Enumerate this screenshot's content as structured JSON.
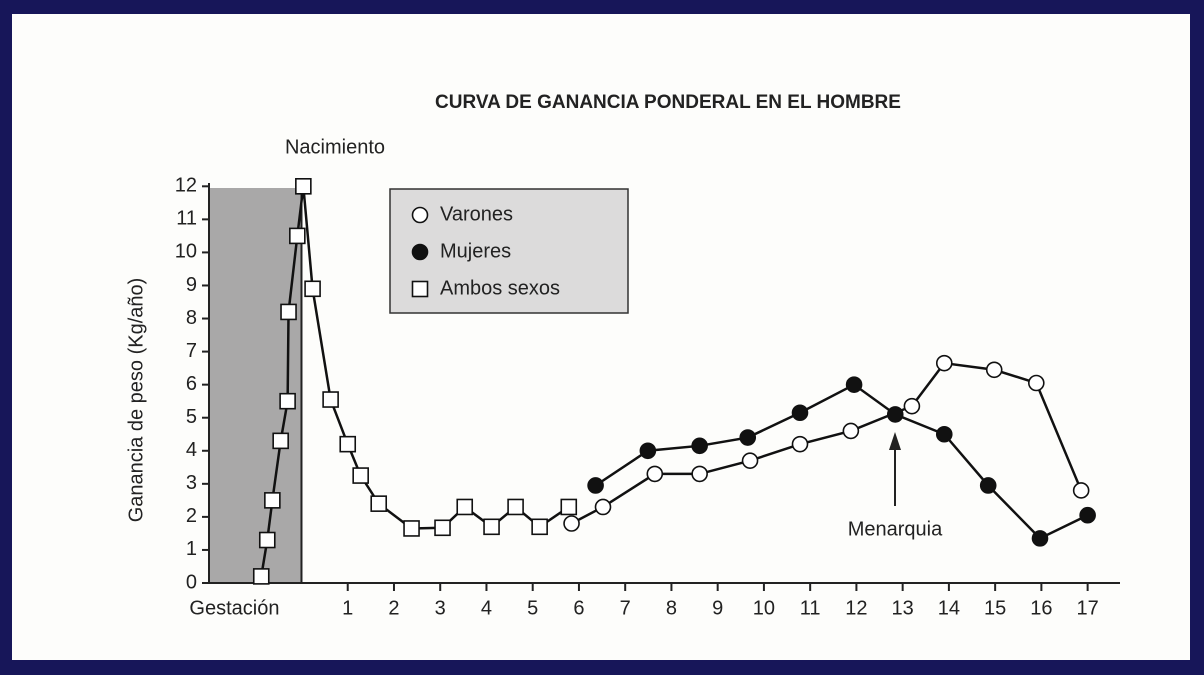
{
  "chart_data": {
    "type": "line",
    "title": "CURVA DE GANANCIA PONDERAL EN EL HOMBRE",
    "y_label": "Ganancia de peso (Kg/año)",
    "annotations": [
      "Nacimiento",
      "Menarquia"
    ],
    "xlim": [
      -2,
      17.7
    ],
    "ylim": [
      0,
      12.1
    ],
    "xticks": [
      {
        "value": -1.45,
        "label": "Gestación"
      },
      1,
      2,
      3,
      4,
      5,
      6,
      7,
      8,
      9,
      10,
      11,
      12,
      13,
      14,
      15,
      16,
      17
    ],
    "yticks": [
      0,
      1,
      2,
      3,
      4,
      5,
      6,
      7,
      8,
      9,
      10,
      11,
      12
    ],
    "series": [
      {
        "name": "Varones",
        "marker": "circle-open",
        "color": "#111111",
        "x": [
          5.84,
          6.52,
          7.64,
          8.61,
          9.7,
          10.78,
          11.88,
          13.2,
          13.9,
          14.98,
          15.89,
          16.86
        ],
        "values": [
          1.8,
          2.3,
          3.3,
          3.3,
          3.7,
          4.2,
          4.6,
          5.35,
          6.65,
          6.45,
          6.05,
          2.8
        ]
      },
      {
        "name": "Mujeres",
        "marker": "circle-filled",
        "color": "#111111",
        "x": [
          6.36,
          7.49,
          8.61,
          9.65,
          10.78,
          11.95,
          12.84,
          13.9,
          14.85,
          15.97,
          17.0
        ],
        "values": [
          2.95,
          4.0,
          4.15,
          4.4,
          5.15,
          6.0,
          5.1,
          4.5,
          2.95,
          1.35,
          2.05
        ]
      },
      {
        "name": "Ambos sexos",
        "marker": "square-open",
        "color": "#111111",
        "x": [
          -0.87,
          -0.74,
          -0.63,
          -0.45,
          -0.3,
          -0.28,
          -0.09,
          0.04,
          0.24,
          0.63,
          1.0,
          1.28,
          1.67,
          2.38,
          3.05,
          3.53,
          4.11,
          4.63,
          5.15,
          5.78
        ],
        "values": [
          0.2,
          1.3,
          2.5,
          4.3,
          5.5,
          8.2,
          10.5,
          12,
          8.9,
          5.55,
          4.2,
          3.25,
          2.4,
          1.65,
          1.67,
          2.3,
          1.7,
          2.3,
          1.7,
          2.3
        ]
      }
    ]
  }
}
